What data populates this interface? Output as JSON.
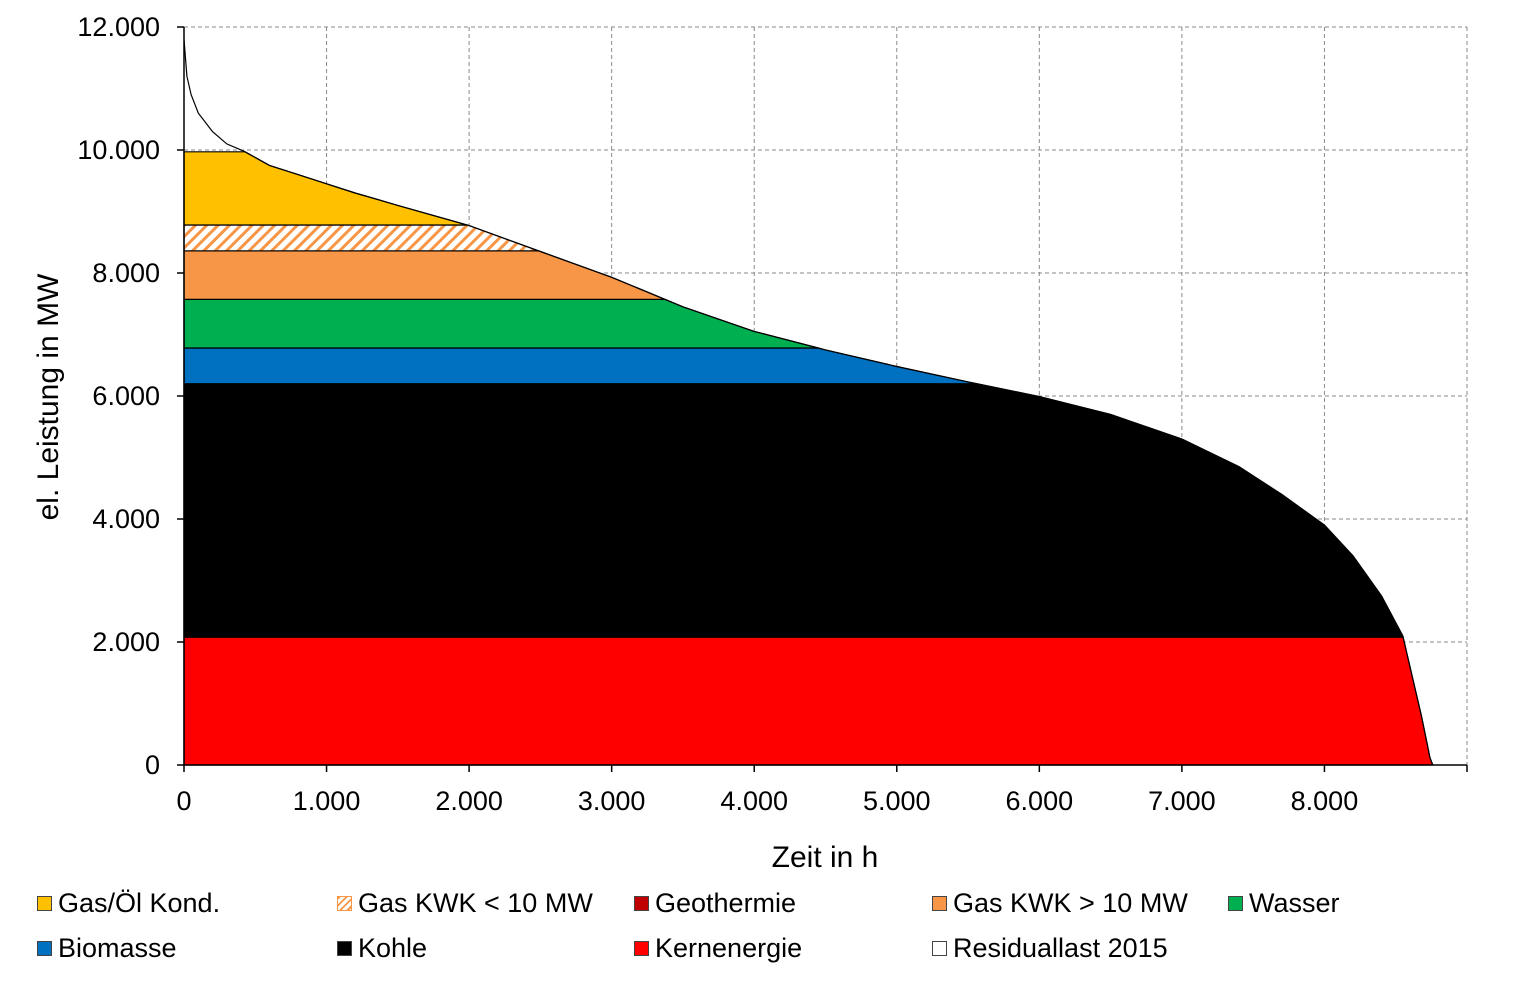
{
  "chart_data": {
    "type": "area",
    "title": "",
    "xlabel": "Zeit in h",
    "ylabel": "el. Leistung in MW",
    "xlim": [
      0,
      9000
    ],
    "ylim": [
      0,
      12000
    ],
    "x_ticks": [
      0,
      1000,
      2000,
      3000,
      4000,
      5000,
      6000,
      7000,
      8000
    ],
    "x_tick_labels": [
      "0",
      "1.000",
      "2.000",
      "3.000",
      "4.000",
      "5.000",
      "6.000",
      "7.000",
      "8.000"
    ],
    "y_ticks": [
      0,
      2000,
      4000,
      6000,
      8000,
      10000,
      12000
    ],
    "y_tick_labels": [
      "0",
      "2.000",
      "4.000",
      "6.000",
      "8.000",
      "10.000",
      "12.000"
    ],
    "grid": true,
    "legend_position": "bottom",
    "residual_load_curve": {
      "name": "Residuallast 2015",
      "x": [
        0,
        20,
        50,
        100,
        200,
        300,
        420,
        600,
        800,
        1000,
        1200,
        1500,
        2000,
        2500,
        3000,
        3500,
        4000,
        4500,
        5000,
        5500,
        6000,
        6500,
        7000,
        7400,
        7700,
        8000,
        8200,
        8400,
        8550,
        8620,
        8680,
        8720,
        8740,
        8760
      ],
      "y": [
        11800,
        11200,
        10900,
        10600,
        10300,
        10100,
        9980,
        9750,
        9600,
        9450,
        9300,
        9100,
        8770,
        8350,
        7930,
        7450,
        7050,
        6750,
        6480,
        6230,
        5990,
        5700,
        5300,
        4850,
        4400,
        3900,
        3400,
        2750,
        2100,
        1400,
        800,
        350,
        120,
        0
      ]
    },
    "series": [
      {
        "name": "Kernenergie",
        "color": "#ff0000",
        "band": [
          0,
          2080
        ]
      },
      {
        "name": "Kohle",
        "color": "#000000",
        "band": [
          2080,
          6200
        ]
      },
      {
        "name": "Biomasse",
        "color": "#0070c0",
        "band": [
          6200,
          6780
        ]
      },
      {
        "name": "Wasser",
        "color": "#00b050",
        "band": [
          6780,
          7570
        ]
      },
      {
        "name": "Gas KWK > 10 MW",
        "color": "#f79646",
        "band": [
          7570,
          8360
        ]
      },
      {
        "name": "Gas KWK < 10 MW",
        "color": "#f79646",
        "pattern": "hatch",
        "band": [
          8360,
          8780
        ]
      },
      {
        "name": "Gas/Öl Kond.",
        "color": "#ffc000",
        "band": [
          8780,
          9970
        ]
      },
      {
        "name": "Geothermie",
        "color": "#c00000",
        "band": [
          9970,
          9970
        ]
      }
    ],
    "legend": [
      {
        "label": "Gas/Öl Kond.",
        "color": "#ffc000"
      },
      {
        "label": "Gas KWK < 10 MW",
        "color": "#f79646",
        "pattern": "hatch"
      },
      {
        "label": "Geothermie",
        "color": "#c00000"
      },
      {
        "label": "Gas KWK > 10 MW",
        "color": "#f79646"
      },
      {
        "label": "Wasser",
        "color": "#00b050"
      },
      {
        "label": "Biomasse",
        "color": "#0070c0"
      },
      {
        "label": "Kohle",
        "color": "#000000"
      },
      {
        "label": "Kernenergie",
        "color": "#ff0000"
      },
      {
        "label": "Residuallast 2015",
        "color": "#ffffff"
      }
    ]
  }
}
